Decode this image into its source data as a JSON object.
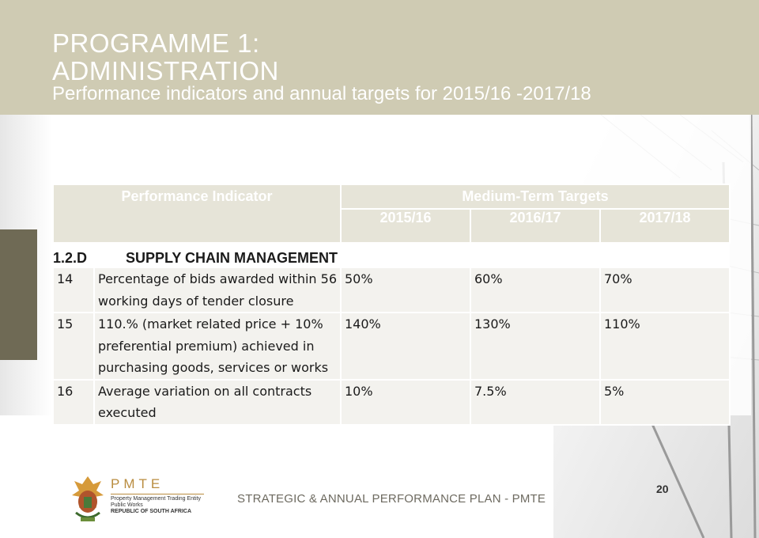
{
  "header": {
    "title_line1": "PROGRAMME 1:",
    "title_line2": "ADMINISTRATION",
    "subtitle": "Performance indicators and annual targets for 2015/16 -2017/18"
  },
  "table": {
    "indicator_header": "Performance Indicator",
    "targets_header": "Medium-Term Targets",
    "years": [
      "2015/16",
      "2016/17",
      "2017/18"
    ],
    "section": {
      "code": "1.2.D",
      "title": "SUPPLY CHAIN MANAGEMENT"
    },
    "rows": [
      {
        "num": "14",
        "indicator": "Percentage of bids awarded within 56 working days of tender closure",
        "targets": [
          "50%",
          "60%",
          "70%"
        ]
      },
      {
        "num": "15",
        "indicator": "110.% (market related price + 10% preferential premium) achieved in purchasing goods, services or works",
        "targets": [
          "140%",
          "130%",
          "110%"
        ]
      },
      {
        "num": "16",
        "indicator": "Average variation on all contracts executed",
        "targets": [
          "10%",
          "7.5%",
          "5%"
        ]
      }
    ]
  },
  "footer": {
    "text": "STRATEGIC & ANNUAL PERFORMANCE PLAN - PMTE",
    "page_number": "20",
    "logo": {
      "name": "PMTE",
      "line1": "Property Management Trading Entity",
      "line2": "Public Works",
      "line3": "REPUBLIC OF SOUTH AFRICA"
    }
  },
  "colors": {
    "header_band": "#cfcbb3",
    "table_header": "#e6e4d8",
    "row_fill": "#f3f2ee",
    "side_block": "#6f6a55",
    "brand_gold": "#b98c3f"
  }
}
